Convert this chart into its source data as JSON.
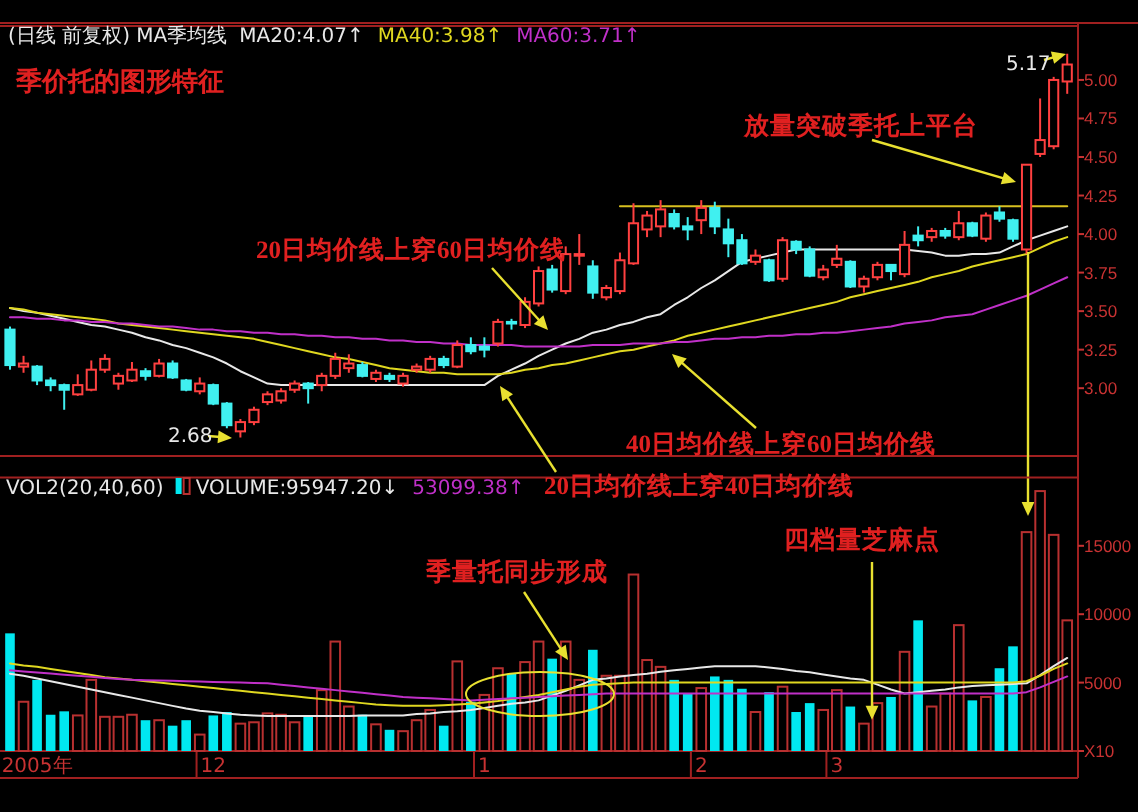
{
  "chart_data": [
    {
      "type": "candlestick",
      "title": "季价托的图形特征",
      "subtitle": "(日线 前复权) MA季均线",
      "categories": [
        null,
        null,
        null,
        null,
        null,
        null,
        null,
        null,
        null,
        null,
        null,
        null,
        null,
        null,
        null,
        null,
        null,
        null,
        null,
        null,
        null,
        null,
        null,
        null,
        null,
        null,
        null,
        null,
        null,
        null,
        null,
        null,
        null,
        null,
        null,
        null,
        null,
        null,
        null,
        null,
        null,
        null,
        null,
        null,
        null,
        null,
        null,
        null,
        null,
        null,
        null,
        null,
        null,
        null,
        null,
        null,
        null,
        null,
        null,
        null,
        null,
        null,
        null,
        null,
        null,
        null,
        null,
        null,
        null,
        null,
        null,
        null,
        null,
        null,
        null,
        null,
        null,
        null,
        null
      ],
      "ohlc": [
        [
          3.38,
          3.4,
          3.12,
          3.15
        ],
        [
          3.14,
          3.21,
          3.1,
          3.16
        ],
        [
          3.14,
          3.15,
          3.02,
          3.05
        ],
        [
          3.05,
          3.07,
          2.98,
          3.02
        ],
        [
          3.02,
          3.03,
          2.86,
          2.99
        ],
        [
          2.96,
          3.09,
          2.95,
          3.02
        ],
        [
          2.99,
          3.18,
          2.98,
          3.12
        ],
        [
          3.12,
          3.22,
          3.1,
          3.19
        ],
        [
          3.03,
          3.1,
          2.99,
          3.08
        ],
        [
          3.05,
          3.17,
          3.04,
          3.12
        ],
        [
          3.11,
          3.13,
          3.05,
          3.08
        ],
        [
          3.08,
          3.19,
          3.07,
          3.16
        ],
        [
          3.16,
          3.18,
          3.06,
          3.07
        ],
        [
          3.05,
          3.06,
          2.98,
          2.99
        ],
        [
          2.98,
          3.07,
          2.96,
          3.03
        ],
        [
          3.02,
          3.03,
          2.89,
          2.9
        ],
        [
          2.9,
          2.91,
          2.74,
          2.76
        ],
        [
          2.72,
          2.8,
          2.68,
          2.78
        ],
        [
          2.78,
          2.88,
          2.76,
          2.86
        ],
        [
          2.91,
          2.98,
          2.89,
          2.96
        ],
        [
          2.92,
          3.0,
          2.9,
          2.98
        ],
        [
          2.99,
          3.05,
          2.97,
          3.03
        ],
        [
          3.03,
          3.04,
          2.9,
          3.0
        ],
        [
          3.02,
          3.1,
          2.98,
          3.08
        ],
        [
          3.08,
          3.23,
          3.06,
          3.19
        ],
        [
          3.13,
          3.22,
          3.1,
          3.16
        ],
        [
          3.15,
          3.17,
          3.07,
          3.08
        ],
        [
          3.06,
          3.12,
          3.04,
          3.1
        ],
        [
          3.08,
          3.1,
          3.04,
          3.06
        ],
        [
          3.03,
          3.1,
          3.01,
          3.08
        ],
        [
          3.12,
          3.16,
          3.1,
          3.14
        ],
        [
          3.12,
          3.21,
          3.1,
          3.19
        ],
        [
          3.19,
          3.21,
          3.13,
          3.15
        ],
        [
          3.14,
          3.31,
          3.13,
          3.28
        ],
        [
          3.28,
          3.33,
          3.22,
          3.24
        ],
        [
          3.27,
          3.33,
          3.2,
          3.25
        ],
        [
          3.29,
          3.45,
          3.27,
          3.43
        ],
        [
          3.43,
          3.45,
          3.38,
          3.42
        ],
        [
          3.41,
          3.59,
          3.39,
          3.56
        ],
        [
          3.55,
          3.79,
          3.53,
          3.76
        ],
        [
          3.77,
          3.8,
          3.62,
          3.64
        ],
        [
          3.63,
          3.92,
          3.61,
          3.87
        ],
        [
          3.86,
          4.0,
          3.8,
          3.87
        ],
        [
          3.79,
          3.83,
          3.58,
          3.62
        ],
        [
          3.59,
          3.67,
          3.57,
          3.65
        ],
        [
          3.63,
          3.88,
          3.61,
          3.83
        ],
        [
          3.81,
          4.2,
          3.8,
          4.07
        ],
        [
          4.03,
          4.15,
          3.98,
          4.12
        ],
        [
          4.05,
          4.22,
          3.98,
          4.16
        ],
        [
          4.13,
          4.16,
          4.03,
          4.05
        ],
        [
          4.05,
          4.11,
          3.96,
          4.03
        ],
        [
          4.09,
          4.22,
          4.0,
          4.17
        ],
        [
          4.17,
          4.21,
          4.0,
          4.05
        ],
        [
          4.03,
          4.1,
          3.85,
          3.94
        ],
        [
          3.96,
          4.0,
          3.8,
          3.81
        ],
        [
          3.82,
          3.9,
          3.8,
          3.86
        ],
        [
          3.83,
          3.84,
          3.69,
          3.7
        ],
        [
          3.71,
          3.98,
          3.69,
          3.96
        ],
        [
          3.95,
          3.96,
          3.87,
          3.9
        ],
        [
          3.9,
          3.92,
          3.72,
          3.73
        ],
        [
          3.72,
          3.8,
          3.7,
          3.77
        ],
        [
          3.8,
          3.93,
          3.78,
          3.84
        ],
        [
          3.82,
          3.83,
          3.65,
          3.66
        ],
        [
          3.66,
          3.73,
          3.62,
          3.71
        ],
        [
          3.72,
          3.82,
          3.7,
          3.8
        ],
        [
          3.8,
          3.8,
          3.7,
          3.76
        ],
        [
          3.74,
          4.02,
          3.72,
          3.93
        ],
        [
          3.99,
          4.05,
          3.92,
          3.96
        ],
        [
          3.98,
          4.04,
          3.95,
          4.02
        ],
        [
          4.02,
          4.04,
          3.97,
          3.99
        ],
        [
          3.98,
          4.15,
          3.96,
          4.07
        ],
        [
          4.07,
          4.08,
          3.98,
          3.99
        ],
        [
          3.97,
          4.14,
          3.95,
          4.12
        ],
        [
          4.14,
          4.18,
          4.08,
          4.1
        ],
        [
          4.09,
          4.1,
          3.95,
          3.97
        ],
        [
          3.9,
          4.45,
          3.87,
          4.45
        ],
        [
          4.52,
          4.88,
          4.5,
          4.61
        ],
        [
          4.57,
          5.02,
          4.55,
          5.0
        ],
        [
          4.99,
          5.17,
          4.91,
          5.1
        ]
      ],
      "series": [
        {
          "type": "line",
          "name": "MA20:4.07↑",
          "color": "#e8e8e8",
          "values": [
            3.52,
            3.5,
            3.49,
            3.47,
            3.45,
            3.43,
            3.41,
            3.4,
            3.38,
            3.36,
            3.33,
            3.31,
            3.28,
            3.26,
            3.23,
            3.2,
            3.16,
            3.11,
            3.07,
            3.03,
            3.02,
            3.02,
            3.02,
            3.02,
            3.02,
            3.02,
            3.02,
            3.02,
            3.02,
            3.02,
            3.02,
            3.02,
            3.02,
            3.02,
            3.02,
            3.02,
            3.08,
            3.12,
            3.16,
            3.21,
            3.25,
            3.29,
            3.32,
            3.36,
            3.38,
            3.41,
            3.43,
            3.46,
            3.48,
            3.54,
            3.59,
            3.65,
            3.7,
            3.76,
            3.82,
            3.84,
            3.86,
            3.88,
            3.9,
            3.9,
            3.9,
            3.9,
            3.9,
            3.9,
            3.9,
            3.9,
            3.9,
            3.89,
            3.88,
            3.86,
            3.86,
            3.87,
            3.87,
            3.88,
            3.92,
            3.96,
            3.99,
            4.02,
            4.05
          ]
        },
        {
          "type": "line",
          "name": "MA40:3.98↑",
          "color": "#e0d820",
          "values": [
            3.52,
            3.51,
            3.49,
            3.48,
            3.47,
            3.46,
            3.45,
            3.44,
            3.42,
            3.41,
            3.4,
            3.39,
            3.38,
            3.37,
            3.36,
            3.35,
            3.34,
            3.33,
            3.32,
            3.3,
            3.28,
            3.26,
            3.24,
            3.22,
            3.2,
            3.19,
            3.17,
            3.15,
            3.13,
            3.12,
            3.11,
            3.1,
            3.1,
            3.09,
            3.09,
            3.09,
            3.09,
            3.1,
            3.12,
            3.13,
            3.15,
            3.16,
            3.18,
            3.2,
            3.22,
            3.24,
            3.25,
            3.27,
            3.29,
            3.31,
            3.34,
            3.36,
            3.38,
            3.4,
            3.42,
            3.44,
            3.46,
            3.48,
            3.5,
            3.52,
            3.54,
            3.56,
            3.59,
            3.61,
            3.63,
            3.65,
            3.67,
            3.69,
            3.72,
            3.74,
            3.76,
            3.79,
            3.81,
            3.83,
            3.85,
            3.87,
            3.91,
            3.95,
            3.98
          ]
        },
        {
          "type": "line",
          "name": "MA60:3.71↑",
          "color": "#c030c8",
          "values": [
            3.46,
            3.46,
            3.45,
            3.45,
            3.44,
            3.44,
            3.43,
            3.43,
            3.42,
            3.42,
            3.41,
            3.4,
            3.4,
            3.39,
            3.38,
            3.38,
            3.37,
            3.37,
            3.36,
            3.36,
            3.35,
            3.35,
            3.34,
            3.34,
            3.33,
            3.33,
            3.32,
            3.32,
            3.31,
            3.31,
            3.3,
            3.3,
            3.29,
            3.29,
            3.28,
            3.28,
            3.28,
            3.28,
            3.27,
            3.27,
            3.27,
            3.27,
            3.27,
            3.28,
            3.28,
            3.28,
            3.29,
            3.29,
            3.29,
            3.3,
            3.3,
            3.31,
            3.32,
            3.32,
            3.33,
            3.33,
            3.34,
            3.34,
            3.35,
            3.35,
            3.36,
            3.36,
            3.37,
            3.38,
            3.39,
            3.4,
            3.42,
            3.43,
            3.44,
            3.46,
            3.47,
            3.48,
            3.51,
            3.54,
            3.57,
            3.6,
            3.64,
            3.68,
            3.72
          ]
        },
        {
          "type": "line",
          "color": "#d8c020",
          "values": [
            null,
            null,
            null,
            null,
            null,
            null,
            null,
            null,
            null,
            null,
            null,
            null,
            null,
            null,
            null,
            null,
            null,
            null,
            null,
            null,
            null,
            null,
            null,
            null,
            null,
            null,
            null,
            null,
            null,
            null,
            null,
            null,
            null,
            null,
            null,
            null,
            null,
            null,
            null,
            null,
            null,
            null,
            null,
            null,
            null,
            4.18,
            4.18,
            4.18,
            4.18,
            4.18,
            4.18,
            4.18,
            4.18,
            4.18,
            4.18,
            4.18,
            4.18,
            4.18,
            4.18,
            4.18,
            4.18,
            4.18,
            4.18,
            4.18,
            4.18,
            4.18,
            4.18,
            4.18,
            4.18,
            4.18,
            4.18,
            4.18,
            4.18,
            4.18,
            4.18,
            4.18,
            4.18,
            4.18,
            4.18
          ]
        }
      ],
      "ylim": [
        2.56,
        5.35
      ],
      "yticks": [
        {
          "value": 3,
          "label": "3.00"
        },
        {
          "value": 3.25,
          "label": "3.25"
        },
        {
          "value": 3.5,
          "label": "3.50"
        },
        {
          "value": 3.75,
          "label": "3.75"
        },
        {
          "value": 4,
          "label": "4.00"
        },
        {
          "value": 4.25,
          "label": "4.25"
        },
        {
          "value": 4.5,
          "label": "4.50"
        },
        {
          "value": 4.75,
          "label": "4.75"
        },
        {
          "value": 5,
          "label": "5.00"
        }
      ],
      "tick_labels": "y",
      "legend": "top left",
      "annotations": [
        "放量突破季托上平台",
        "20日均价线上穿60日均价线",
        "40日均价线上穿60日均价线",
        "5.17",
        "2.68"
      ]
    },
    {
      "type": "bar",
      "title": "VOL2(20,40,60)",
      "categories": [
        null,
        null,
        "2005年",
        null,
        null,
        null,
        null,
        null,
        null,
        null,
        null,
        null,
        null,
        null,
        null,
        "12",
        null,
        null,
        null,
        null,
        null,
        null,
        null,
        null,
        null,
        null,
        null,
        null,
        null,
        null,
        null,
        null,
        null,
        null,
        null,
        "1",
        null,
        null,
        null,
        null,
        null,
        null,
        null,
        null,
        null,
        null,
        null,
        null,
        null,
        null,
        null,
        "2",
        null,
        null,
        null,
        null,
        null,
        null,
        null,
        null,
        null,
        "3",
        null,
        null,
        null,
        null,
        null,
        null,
        null,
        null,
        null,
        null,
        null,
        null,
        null,
        null,
        null,
        null,
        null
      ],
      "series": [
        {
          "type": "bar",
          "name": "VOLUME:95947.20↓",
          "values": [
            8600,
            3600,
            5200,
            2650,
            2900,
            2600,
            5200,
            2500,
            2500,
            2650,
            2250,
            2250,
            1850,
            2250,
            1200,
            2600,
            2850,
            2000,
            2100,
            2750,
            2650,
            2100,
            2500,
            4450,
            8000,
            3250,
            2650,
            1950,
            1550,
            1450,
            2250,
            3000,
            1850,
            6550,
            3600,
            4100,
            6050,
            5650,
            6500,
            8000,
            6750,
            8000,
            5200,
            7400,
            5500,
            5500,
            12900,
            6650,
            6150,
            5200,
            4200,
            4600,
            5450,
            5200,
            4550,
            2850,
            4300,
            4700,
            2850,
            3500,
            3000,
            4450,
            3250,
            2000,
            3500,
            3950,
            7250,
            9550,
            3250,
            4200,
            9200,
            3700,
            3950,
            6050,
            7650,
            16000,
            19000,
            15800,
            9550
          ],
          "colors": [
            "#00e8f0",
            "#b83030",
            "#00e8f0",
            "#00e8f0",
            "#00e8f0",
            "#b83030",
            "#b83030",
            "#b83030",
            "#b83030",
            "#b83030",
            "#00e8f0",
            "#b83030",
            "#00e8f0",
            "#00e8f0",
            "#b83030",
            "#00e8f0",
            "#00e8f0",
            "#b83030",
            "#b83030",
            "#b83030",
            "#b83030",
            "#b83030",
            "#00e8f0",
            "#b83030",
            "#b83030",
            "#b83030",
            "#00e8f0",
            "#b83030",
            "#00e8f0",
            "#b83030",
            "#b83030",
            "#b83030",
            "#00e8f0",
            "#b83030",
            "#00e8f0",
            "#b83030",
            "#b83030",
            "#00e8f0",
            "#b83030",
            "#b83030",
            "#00e8f0",
            "#b83030",
            "#b83030",
            "#00e8f0",
            "#b83030",
            "#b83030",
            "#b83030",
            "#b83030",
            "#b83030",
            "#00e8f0",
            "#00e8f0",
            "#b83030",
            "#00e8f0",
            "#00e8f0",
            "#00e8f0",
            "#b83030",
            "#00e8f0",
            "#b83030",
            "#00e8f0",
            "#00e8f0",
            "#b83030",
            "#b83030",
            "#00e8f0",
            "#b83030",
            "#b83030",
            "#00e8f0",
            "#b83030",
            "#00e8f0",
            "#b83030",
            "#b83030",
            "#b83030",
            "#00e8f0",
            "#b83030",
            "#00e8f0",
            "#00e8f0",
            "#b83030",
            "#b83030",
            "#b83030",
            "#b83030"
          ]
        },
        {
          "type": "line",
          "color": "#e8e8e8",
          "values": [
            5650,
            5500,
            5300,
            5100,
            4900,
            4700,
            4500,
            4300,
            4100,
            3900,
            3700,
            3500,
            3300,
            3100,
            2950,
            2850,
            2750,
            2650,
            2600,
            2550,
            2550,
            2550,
            2550,
            2550,
            2550,
            2550,
            2600,
            2600,
            2600,
            2600,
            2700,
            2750,
            2850,
            2900,
            3000,
            3150,
            3300,
            3450,
            3550,
            3700,
            4050,
            4400,
            4800,
            5200,
            5300,
            5450,
            5550,
            5650,
            5800,
            5900,
            6000,
            6100,
            6200,
            6200,
            6200,
            6200,
            6100,
            6000,
            5850,
            5750,
            5600,
            5450,
            5300,
            5200,
            4850,
            4500,
            4200,
            4300,
            4400,
            4500,
            4650,
            4750,
            4800,
            4850,
            4900,
            4950,
            5550,
            6200,
            6800
          ]
        },
        {
          "type": "line",
          "color": "#e0d820",
          "values": [
            6400,
            6250,
            6150,
            6000,
            5850,
            5700,
            5550,
            5400,
            5300,
            5200,
            5100,
            5000,
            4900,
            4800,
            4700,
            4600,
            4500,
            4400,
            4300,
            4200,
            4100,
            4000,
            3900,
            3800,
            3700,
            3600,
            3500,
            3400,
            3350,
            3300,
            3300,
            3300,
            3350,
            3400,
            3450,
            3550,
            3650,
            3800,
            3950,
            4100,
            4300,
            4500,
            4700,
            4850,
            4900,
            4950,
            5000,
            5000,
            5000,
            5000,
            5000,
            5000,
            5000,
            5000,
            5000,
            5000,
            5000,
            5000,
            5000,
            5000,
            5000,
            5000,
            5000,
            5000,
            5000,
            5000,
            5000,
            5000,
            5000,
            5000,
            5000,
            5000,
            5000,
            5000,
            5000,
            5100,
            5500,
            6000,
            6400
          ]
        },
        {
          "type": "line",
          "name": "53099.38↑",
          "color": "#c030c8",
          "values": [
            5900,
            5820,
            5740,
            5660,
            5580,
            5500,
            5420,
            5340,
            5260,
            5200,
            5180,
            5150,
            5130,
            5100,
            5080,
            5050,
            5030,
            5000,
            4980,
            4950,
            4850,
            4750,
            4650,
            4550,
            4450,
            4350,
            4250,
            4150,
            4050,
            3950,
            3900,
            3850,
            3800,
            3750,
            3700,
            3750,
            3800,
            3850,
            3900,
            3950,
            4000,
            4050,
            4100,
            4150,
            4200,
            4200,
            4200,
            4200,
            4200,
            4200,
            4200,
            4200,
            4200,
            4200,
            4200,
            4200,
            4200,
            4200,
            4200,
            4200,
            4200,
            4200,
            4200,
            4200,
            4200,
            4200,
            4200,
            4200,
            4200,
            4200,
            4200,
            4200,
            4200,
            4200,
            4200,
            4300,
            4650,
            5050,
            5450
          ]
        }
      ],
      "ylim": [
        0,
        20000
      ],
      "yticks": [
        {
          "value": 0,
          "label": "X10"
        },
        5000,
        10000,
        15000
      ],
      "legend": "top left",
      "annotations": [
        "20日均价线上穿40日均价线",
        "季量托同步形成",
        {
          "text": "四档量芝麻点",
          "y": 2000
        }
      ]
    }
  ]
}
